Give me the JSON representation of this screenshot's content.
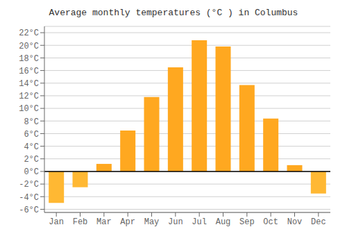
{
  "chart_data": {
    "type": "bar",
    "title": "Average monthly temperatures (°C ) in Columbus",
    "categories": [
      "Jan",
      "Feb",
      "Mar",
      "Apr",
      "May",
      "Jun",
      "Jul",
      "Aug",
      "Sep",
      "Oct",
      "Nov",
      "Dec"
    ],
    "values": [
      -5.0,
      -2.5,
      1.2,
      6.5,
      11.8,
      16.5,
      20.8,
      19.8,
      13.7,
      8.4,
      1.0,
      -3.5
    ],
    "colors": [
      "#FFB833",
      "#FFB833",
      "#FFA820",
      "#FFA820",
      "#FFA820",
      "#FFA820",
      "#FFA820",
      "#FFA820",
      "#FFA820",
      "#FFA820",
      "#FFA820",
      "#FFB833"
    ],
    "ylim": [
      -6.5,
      23
    ],
    "yticks": [
      {
        "value": -6,
        "label": "-6°C"
      },
      {
        "value": -4,
        "label": "-4°C"
      },
      {
        "value": -2,
        "label": "-2°C"
      },
      {
        "value": 0,
        "label": "0°C"
      },
      {
        "value": 2,
        "label": "2°C"
      },
      {
        "value": 4,
        "label": "4°C"
      },
      {
        "value": 6,
        "label": "6°C"
      },
      {
        "value": 8,
        "label": "8°C"
      },
      {
        "value": 10,
        "label": "10°C"
      },
      {
        "value": 12,
        "label": "12°C"
      },
      {
        "value": 14,
        "label": "14°C"
      },
      {
        "value": 16,
        "label": "16°C"
      },
      {
        "value": 18,
        "label": "18°C"
      },
      {
        "value": 20,
        "label": "20°C"
      },
      {
        "value": 22,
        "label": "22°C"
      }
    ],
    "grid": true
  }
}
